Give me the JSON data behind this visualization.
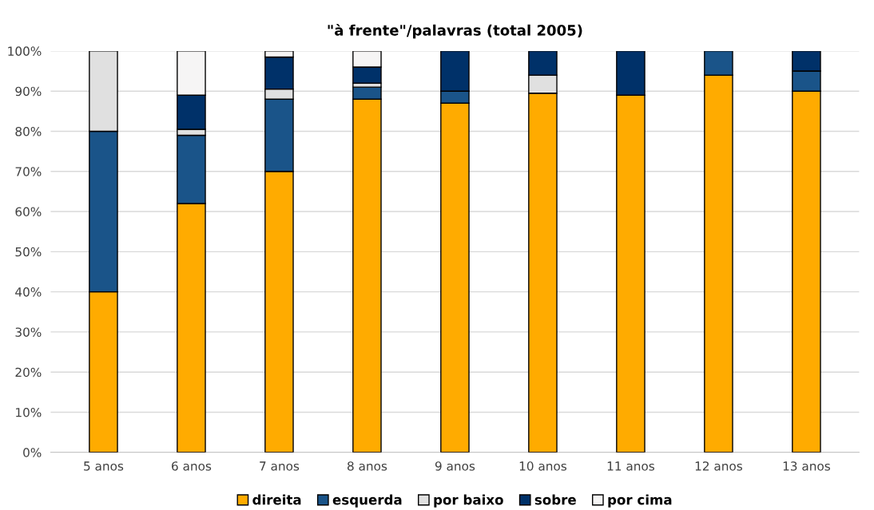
{
  "chart_data": {
    "type": "bar",
    "title": "\"à frente\"/palavras (total 2005)",
    "stacked": true,
    "categories": [
      "5 anos",
      "6 anos",
      "7 anos",
      "8 anos",
      "9 anos",
      "10 anos",
      "11 anos",
      "12 anos",
      "13 anos"
    ],
    "series": [
      {
        "name": "direita",
        "color": "#ffab00",
        "values": [
          40,
          62,
          70,
          88,
          87,
          89.5,
          89,
          94,
          90
        ]
      },
      {
        "name": "esquerda",
        "color": "#1a5489",
        "values": [
          40,
          17,
          18,
          3,
          3,
          0,
          0,
          6,
          5
        ]
      },
      {
        "name": "por baixo",
        "color": "#e0e0e0",
        "values": [
          20,
          1.5,
          2.5,
          1,
          0,
          4.5,
          0,
          0,
          0
        ]
      },
      {
        "name": "sobre",
        "color": "#003169",
        "values": [
          0,
          8.5,
          8,
          4,
          10,
          6,
          11,
          0,
          5
        ]
      },
      {
        "name": "por cima",
        "color": "#f6f5f5",
        "values": [
          0,
          11,
          1.5,
          4,
          0,
          0,
          0,
          0,
          0
        ]
      }
    ],
    "ylim": [
      0,
      100
    ],
    "yticks": [
      {
        "value": 0,
        "label": "0%"
      },
      {
        "value": 10,
        "label": "10%"
      },
      {
        "value": 20,
        "label": "20%"
      },
      {
        "value": 30,
        "label": "30%"
      },
      {
        "value": 40,
        "label": "40%"
      },
      {
        "value": 50,
        "label": "50%"
      },
      {
        "value": 60,
        "label": "60%"
      },
      {
        "value": 70,
        "label": "70%"
      },
      {
        "value": 80,
        "label": "80%"
      },
      {
        "value": 90,
        "label": "90%"
      },
      {
        "value": 100,
        "label": "100%"
      }
    ],
    "grid": "y",
    "legend": "bottom"
  }
}
